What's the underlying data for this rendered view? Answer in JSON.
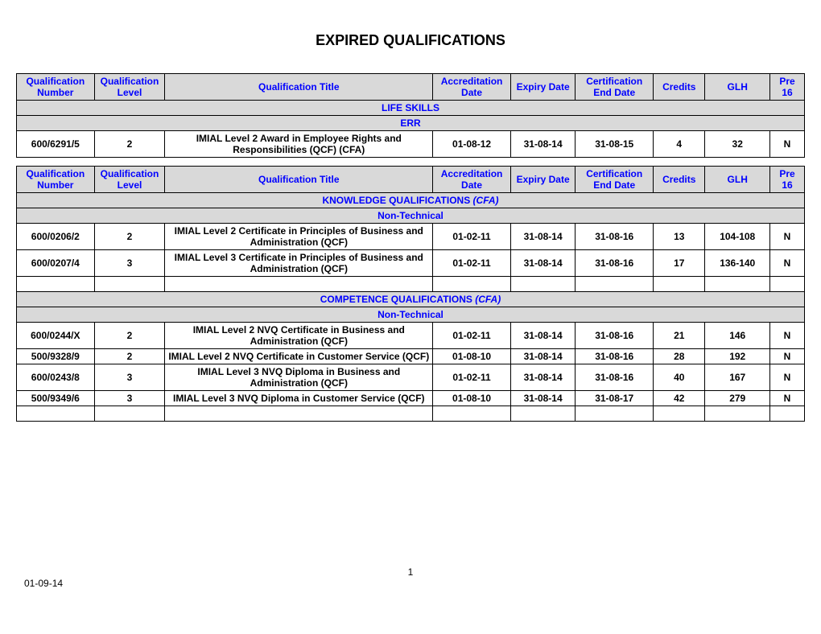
{
  "page_title": "EXPIRED QUALIFICATIONS",
  "columns": [
    "Qualification Number",
    "Qualification Level",
    "Qualification Title",
    "Accreditation Date",
    "Expiry Date",
    "Certification End Date",
    "Credits",
    "GLH",
    "Pre 16"
  ],
  "table1": {
    "section": "LIFE SKILLS",
    "subsection": "ERR",
    "rows": [
      {
        "qnum": "600/6291/5",
        "level": "2",
        "title": "IMIAL Level 2 Award in Employee Rights and Responsibilities (QCF)      (CFA)",
        "accdate": "01-08-12",
        "expdate": "31-08-14",
        "certdate": "31-08-15",
        "credits": "4",
        "glh": "32",
        "pre16": "N"
      }
    ]
  },
  "table2": {
    "section1_prefix": "KNOWLEDGE QUALIFICATIONS ",
    "section1_suffix": "(CFA)",
    "subsection1": "Non-Technical",
    "rows1": [
      {
        "qnum": "600/0206/2",
        "level": "2",
        "title": "IMIAL Level 2 Certificate in Principles of Business and Administration (QCF)",
        "accdate": "01-02-11",
        "expdate": "31-08-14",
        "certdate": "31-08-16",
        "credits": "13",
        "glh": "104-108",
        "pre16": "N"
      },
      {
        "qnum": "600/0207/4",
        "level": "3",
        "title": "IMIAL Level 3 Certificate in Principles of Business and Administration (QCF)",
        "accdate": "01-02-11",
        "expdate": "31-08-14",
        "certdate": "31-08-16",
        "credits": "17",
        "glh": "136-140",
        "pre16": "N"
      }
    ],
    "section2_prefix": "COMPETENCE QUALIFICATIONS ",
    "section2_suffix": "(CFA)",
    "subsection2": "Non-Technical",
    "rows2": [
      {
        "qnum": "600/0244/X",
        "level": "2",
        "title": "IMIAL Level 2 NVQ Certificate in Business and Administration (QCF)",
        "accdate": "01-02-11",
        "expdate": "31-08-14",
        "certdate": "31-08-16",
        "credits": "21",
        "glh": "146",
        "pre16": "N"
      },
      {
        "qnum": "500/9328/9",
        "level": "2",
        "title": "IMIAL Level 2 NVQ Certificate in Customer Service (QCF)",
        "accdate": "01-08-10",
        "expdate": "31-08-14",
        "certdate": "31-08-16",
        "credits": "28",
        "glh": "192",
        "pre16": "N"
      },
      {
        "qnum": "600/0243/8",
        "level": "3",
        "title": "IMIAL Level 3 NVQ Diploma in Business and Administration (QCF)",
        "accdate": "01-02-11",
        "expdate": "31-08-14",
        "certdate": "31-08-16",
        "credits": "40",
        "glh": "167",
        "pre16": "N"
      },
      {
        "qnum": "500/9349/6",
        "level": "3",
        "title": "IMIAL Level 3 NVQ Diploma in Customer Service (QCF)",
        "accdate": "01-08-10",
        "expdate": "31-08-14",
        "certdate": "31-08-17",
        "credits": "42",
        "glh": "279",
        "pre16": "N"
      }
    ]
  },
  "footer": {
    "page_number": "1",
    "date": "01-09-14"
  }
}
